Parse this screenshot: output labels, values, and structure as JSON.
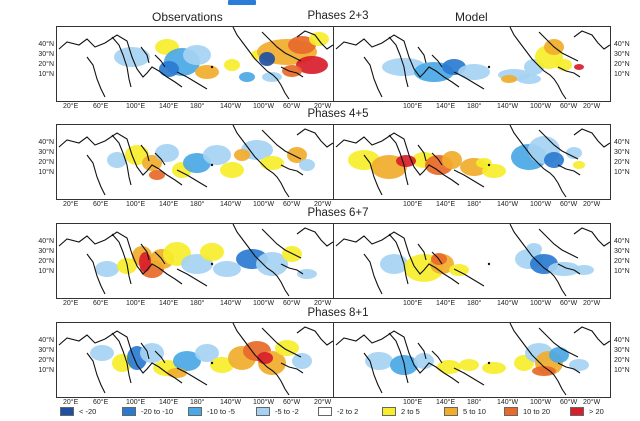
{
  "titles": {
    "left": "Observations",
    "right": "Model"
  },
  "phases": [
    "Phases 2+3",
    "Phases 4+5",
    "Phases 6+7",
    "Phases 8+1"
  ],
  "lat_labels": [
    "40°N",
    "30°N",
    "20°N",
    "10°N"
  ],
  "lon_labels": [
    "20°E",
    "60°E",
    "100°E",
    "140°E",
    "180°",
    "140°W",
    "100°W",
    "60°W",
    "20°W"
  ],
  "legend": [
    {
      "label": "< -20",
      "color": "#1f4fa3"
    },
    {
      "label": "-20 to -10",
      "color": "#2a7bd0"
    },
    {
      "label": "-10 to -5",
      "color": "#4aa8e6"
    },
    {
      "label": "-5 to -2",
      "color": "#a5d2f2"
    },
    {
      "label": "-2 to 2",
      "color": "#ffffff"
    },
    {
      "label": "2 to 5",
      "color": "#f6ee2a"
    },
    {
      "label": "5 to 10",
      "color": "#f1ac2d"
    },
    {
      "label": "10 to 20",
      "color": "#e8692a"
    },
    {
      "label": "> 20",
      "color": "#d81e2a"
    }
  ]
}
